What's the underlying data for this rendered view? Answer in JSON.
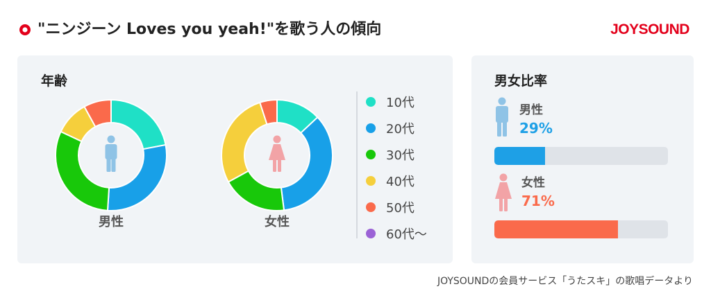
{
  "header": {
    "title": "\"ニンジーン Loves you yeah!\"を歌う人の傾向",
    "logo_text": "JOYSOUND"
  },
  "age_panel": {
    "title": "年齢"
  },
  "ratio_panel": {
    "title": "男女比率",
    "male": {
      "label": "男性",
      "percent_text": "29%",
      "percent": 29
    },
    "female": {
      "label": "女性",
      "percent_text": "71%",
      "percent": 71
    }
  },
  "colors": {
    "10代": "#1fe0c6",
    "20代": "#18a0e8",
    "30代": "#18c80a",
    "40代": "#f5cf3c",
    "50代": "#fa6a4b",
    "60代～": "#9b62d6",
    "male": "#1ea0e6",
    "female": "#fa6a4b",
    "male_icon": "#8fc3e6",
    "female_icon": "#f2a3a6",
    "brand": "#e3001b"
  },
  "legend": [
    "10代",
    "20代",
    "30代",
    "40代",
    "50代",
    "60代～"
  ],
  "chart_data": [
    {
      "type": "pie",
      "title": "男性",
      "categories": [
        "10代",
        "20代",
        "30代",
        "40代",
        "50代",
        "60代～"
      ],
      "values": [
        22,
        29,
        31,
        10,
        8,
        0
      ]
    },
    {
      "type": "pie",
      "title": "女性",
      "categories": [
        "10代",
        "20代",
        "30代",
        "40代",
        "50代",
        "60代～"
      ],
      "values": [
        13,
        35,
        19,
        28,
        5,
        0
      ]
    },
    {
      "type": "bar",
      "title": "男女比率",
      "categories": [
        "男性",
        "女性"
      ],
      "values": [
        29,
        71
      ],
      "ylim": [
        0,
        100
      ]
    }
  ],
  "footnote": "JOYSOUNDの会員サービス「うたスキ」の歌唱データより"
}
